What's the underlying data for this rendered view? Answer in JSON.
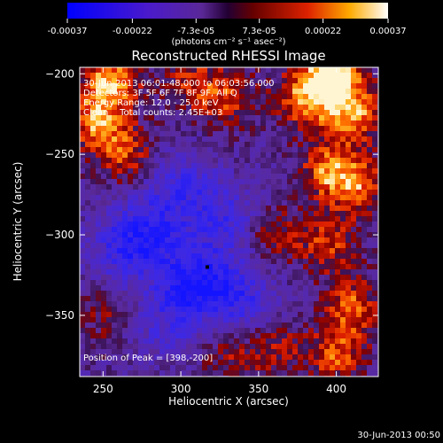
{
  "chart_data": {
    "type": "heatmap",
    "title": "Reconstructed RHESSI Image",
    "xlabel": "Heliocentric X (arcsec)",
    "ylabel": "Heliocentric Y (arcsec)",
    "xlim": [
      235,
      427
    ],
    "ylim": [
      -388,
      -196
    ],
    "x_ticks": [
      250,
      300,
      350,
      400
    ],
    "y_ticks": [
      -200,
      -250,
      -300,
      -350
    ],
    "colorbar": {
      "vmin": -0.00037,
      "vmax": 0.00037,
      "ticks": [
        {
          "value": -0.00037,
          "label": "-0.00037"
        },
        {
          "value": -0.00022,
          "label": "-0.00022"
        },
        {
          "value": -7.3e-05,
          "label": "-7.3e-05"
        },
        {
          "value": 7.3e-05,
          "label": "7.3e-05"
        },
        {
          "value": 0.00022,
          "label": "0.00022"
        },
        {
          "value": 0.00037,
          "label": "0.00037"
        }
      ],
      "unit_label": "(photons cm⁻² s⁻¹ asec⁻²)"
    },
    "annotations": [
      "30-Jun-2013 06:01:48.000 to 06:03:56.000",
      "Detectors: 3F 5F 6F 7F 8F 9F, All Q",
      "Energy Range: 12.0 - 25.0 keV",
      "Clean    Total counts: 2.45E+03"
    ],
    "peak_label": "Position of Peak = [398,-200]",
    "peak": [
      398,
      -200
    ],
    "marker": [
      317,
      -320
    ],
    "hot_regions": [
      {
        "x": 255,
        "y": -205,
        "level": 0.85
      },
      {
        "x": 245,
        "y": -230,
        "level": 0.7
      },
      {
        "x": 265,
        "y": -250,
        "level": 0.55
      },
      {
        "x": 330,
        "y": -215,
        "level": 0.55
      },
      {
        "x": 305,
        "y": -205,
        "level": 0.45
      },
      {
        "x": 398,
        "y": -200,
        "level": 1.0
      },
      {
        "x": 380,
        "y": -215,
        "level": 0.75
      },
      {
        "x": 410,
        "y": -225,
        "level": 0.8
      },
      {
        "x": 395,
        "y": -260,
        "level": 0.7
      },
      {
        "x": 415,
        "y": -270,
        "level": 0.6
      },
      {
        "x": 395,
        "y": -305,
        "level": 0.55
      },
      {
        "x": 360,
        "y": -300,
        "level": 0.45
      },
      {
        "x": 410,
        "y": -345,
        "level": 0.65
      },
      {
        "x": 400,
        "y": -375,
        "level": 0.6
      },
      {
        "x": 360,
        "y": -370,
        "level": 0.45
      },
      {
        "x": 330,
        "y": -375,
        "level": 0.35
      },
      {
        "x": 250,
        "y": -350,
        "level": 0.3
      }
    ],
    "cold_regions": [
      {
        "x": 310,
        "y": -330,
        "level": 0.85
      },
      {
        "x": 280,
        "y": -300,
        "level": 0.65
      },
      {
        "x": 300,
        "y": -270,
        "level": 0.5
      },
      {
        "x": 330,
        "y": -290,
        "level": 0.5
      },
      {
        "x": 260,
        "y": -310,
        "level": 0.45
      },
      {
        "x": 340,
        "y": -340,
        "level": 0.55
      },
      {
        "x": 290,
        "y": -355,
        "level": 0.4
      }
    ]
  },
  "footer_timestamp": "30-Jun-2013 00:50"
}
